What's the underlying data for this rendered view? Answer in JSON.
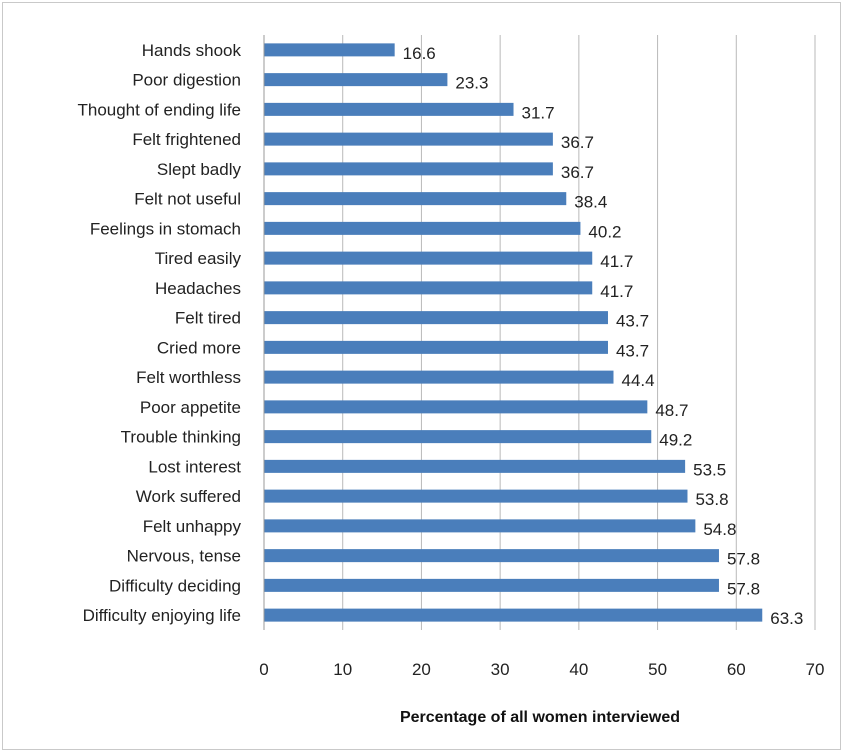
{
  "chart_data": {
    "type": "bar",
    "orientation": "horizontal",
    "title": "",
    "xlabel": "Percentage of all women interviewed",
    "ylabel": "",
    "xlim": [
      0,
      70
    ],
    "xticks": [
      0,
      10,
      20,
      30,
      40,
      50,
      60,
      70
    ],
    "grid": "vertical-major",
    "legend": "none",
    "bar_color": "#4A7EBB",
    "categories": [
      "Hands shook",
      "Poor digestion",
      "Thought of ending life",
      "Felt frightened",
      "Slept badly",
      "Felt not useful",
      "Feelings in stomach",
      "Tired easily",
      "Headaches",
      "Felt tired",
      "Cried more",
      "Felt worthless",
      "Poor appetite",
      "Trouble thinking",
      "Lost interest",
      "Work suffered",
      "Felt unhappy",
      "Nervous, tense",
      "Difficulty deciding",
      "Difficulty enjoying life"
    ],
    "values": [
      16.6,
      23.3,
      31.7,
      36.7,
      36.7,
      38.4,
      40.2,
      41.7,
      41.7,
      43.7,
      43.7,
      44.4,
      48.7,
      49.2,
      53.5,
      53.8,
      54.8,
      57.8,
      57.8,
      63.3
    ],
    "value_labels": [
      "16.6",
      "23.3",
      "31.7",
      "36.7",
      "36.7",
      "38.4",
      "40.2",
      "41.7",
      "41.7",
      "43.7",
      "43.7",
      "44.4",
      "48.7",
      "49.2",
      "53.5",
      "53.8",
      "54.8",
      "57.8",
      "57.8",
      "63.3"
    ]
  }
}
